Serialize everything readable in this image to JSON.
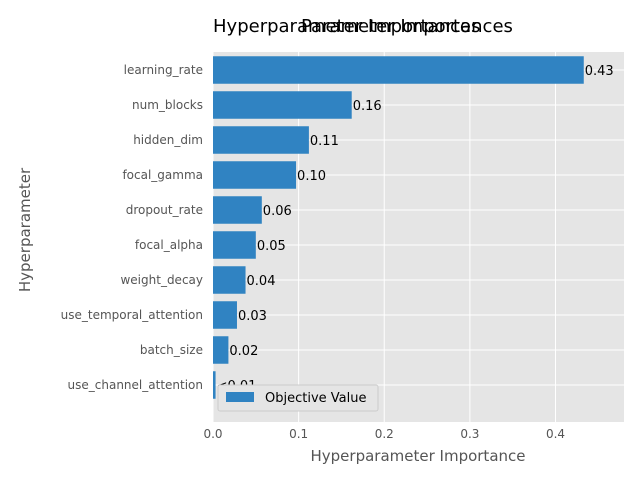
{
  "chart_data": {
    "type": "bar",
    "orientation": "horizontal",
    "titles": [
      "Hyperparameter Importances",
      "Parameter Importances"
    ],
    "xlabel": "Hyperparameter Importance",
    "ylabel": "Hyperparameter",
    "categories": [
      "learning_rate",
      "num_blocks",
      "hidden_dim",
      "focal_gamma",
      "dropout_rate",
      "focal_alpha",
      "weight_decay",
      "use_temporal_attention",
      "batch_size",
      "use_channel_attention"
    ],
    "series": [
      {
        "name": "Objective Value",
        "values": [
          0.433,
          0.162,
          0.112,
          0.097,
          0.057,
          0.05,
          0.038,
          0.028,
          0.018,
          0.003
        ],
        "labels": [
          "0.43",
          "0.16",
          "0.11",
          "0.10",
          "0.06",
          "0.05",
          "0.04",
          "0.03",
          "0.02",
          "<0.01"
        ]
      }
    ],
    "xlim": [
      0,
      0.48
    ],
    "xticks": [
      0.0,
      0.1,
      0.2,
      0.3,
      0.4
    ],
    "xtick_labels": [
      "0.0",
      "0.1",
      "0.2",
      "0.3",
      "0.4"
    ],
    "grid": true,
    "legend": "lower-left",
    "colors": {
      "bar": "#3083c2",
      "plot_bg": "#e5e5e5",
      "grid": "#ffffff",
      "page_bg": "#ffffff"
    }
  }
}
